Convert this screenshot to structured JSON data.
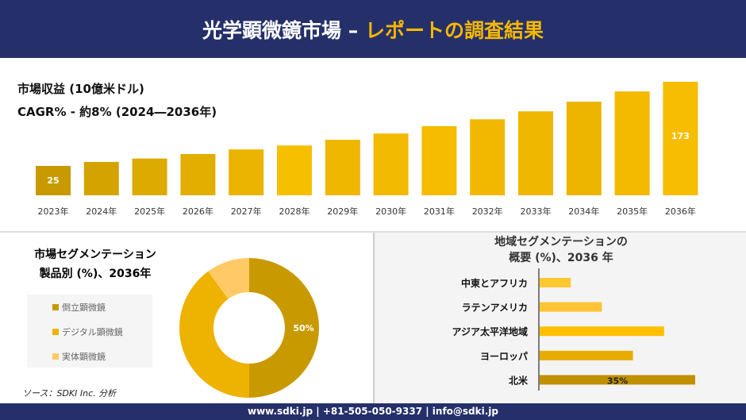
{
  "header": {
    "title_main": "光学顕微鏡市場 –",
    "title_accent": "レポートの調査結果"
  },
  "revenue": {
    "label": "市場収益 (10億米ドル)",
    "cagr": "CAGR% - 約8% (2024―2036年)"
  },
  "segment": {
    "title1": "市場セグメンテーション",
    "title2": "製品別 (%)、2036年",
    "source": "ソース：SDKI Inc. 分析"
  },
  "region": {
    "title1": "地域セグメンテーションの",
    "title2": "概要 (%)、2036 年"
  },
  "footer": {
    "text": "www.sdki.jp | +81-505-050-9337 | info@sdki.jp"
  },
  "colors": {
    "navy": "#25306a",
    "accent": "#f5b800"
  },
  "chart_data": [
    {
      "type": "bar",
      "categories": [
        "2023年",
        "2024年",
        "2025年",
        "2026年",
        "2027年",
        "2028年",
        "2029年",
        "2030年",
        "2031年",
        "2032年",
        "2033年",
        "2034年",
        "2035年",
        "2036年"
      ],
      "values": [
        25,
        32,
        38,
        46,
        54,
        61,
        71,
        82,
        95,
        107,
        121,
        138,
        156,
        173
      ],
      "data_labels": {
        "0": "25",
        "13": "173"
      },
      "colors": [
        "#c89a00",
        "#d4a300",
        "#dcaa00",
        "#e2ae00",
        "#eab400",
        "#f6c000",
        "#efb700",
        "#f2ba00",
        "#f5bc00",
        "#f2b800",
        "#f0b700",
        "#eeb500",
        "#f3ba00",
        "#f7bd00"
      ]
    },
    {
      "type": "pie",
      "donut": true,
      "series": [
        {
          "name": "倒立顕微鏡",
          "value": 50,
          "label": "50%",
          "color": "#c89a00"
        },
        {
          "name": "デジタル顕微鏡",
          "value": 40,
          "color": "#eeb200"
        },
        {
          "name": "実体顕微鏡",
          "value": 10,
          "color": "#ffc966"
        }
      ]
    },
    {
      "type": "bar",
      "orientation": "horizontal",
      "categories": [
        "中東とアフリカ",
        "ラテンアメリカ",
        "アジア太平洋地域",
        "ヨーロッパ",
        "北米"
      ],
      "values": [
        7,
        14,
        28,
        21,
        35
      ],
      "data_labels": {
        "4": "35%"
      },
      "colors": [
        "#ffc830",
        "#fdc533",
        "#ffbf00",
        "#e6ac00",
        "#c09000"
      ]
    }
  ]
}
